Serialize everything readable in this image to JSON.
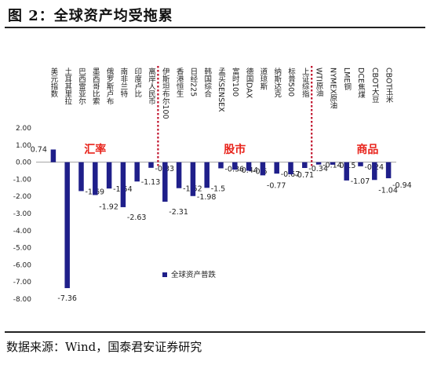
{
  "figure": {
    "title": "图 2：全球资产均受拖累",
    "source": "数据来源：Wind，国泰君安证券研究"
  },
  "chart_data": {
    "type": "bar",
    "categories": [
      "美元指数",
      "土耳其里拉",
      "巴西雷亚尔",
      "墨西哥比索",
      "俄罗斯卢布",
      "南非兰特",
      "印度卢比",
      "离岸人民币",
      "伊斯坦布尔100",
      "香港恒生",
      "日经225",
      "韩国综合",
      "孟买SENSEX",
      "富时100",
      "德国DAX",
      "道琼斯",
      "纳斯达克",
      "标普500",
      "上证综指",
      "WTI原油",
      "NYMEX原油",
      "LME铜",
      "DCE焦煤",
      "CBOT大豆",
      "CBOT玉米"
    ],
    "values": [
      0.74,
      -7.36,
      -1.69,
      -1.92,
      -1.54,
      -2.63,
      -1.13,
      -0.33,
      -2.31,
      -1.52,
      -1.98,
      -1.5,
      -0.36,
      -0.44,
      -0.5,
      -0.77,
      -0.67,
      -0.71,
      -0.34,
      -0.14,
      -0.15,
      -1.07,
      -0.24,
      -1.04,
      -0.94
    ],
    "value_labels": [
      "0.74",
      "-7.36",
      "-1.69",
      "-1.92",
      "-1.54",
      "-2.63",
      "-1.13",
      "-0.33",
      "-2.31",
      "-1.52",
      "-1.98",
      "-1.5",
      "-0.36",
      "-0.44",
      "-0.5",
      "-0.77",
      "-0.67",
      "-0.71",
      "-0.34",
      "-0.14",
      "-0.15",
      "-1.07",
      "-0.24",
      "-1.04",
      "-0.94"
    ],
    "groups": [
      {
        "label": "汇率",
        "start": 0,
        "end": 7
      },
      {
        "label": "股市",
        "start": 8,
        "end": 18
      },
      {
        "label": "商品",
        "start": 19,
        "end": 24
      }
    ],
    "ylim": [
      -8,
      2
    ],
    "yticks": [
      "2.00",
      "1.00",
      "0.00",
      "-1.00",
      "-2.00",
      "-3.00",
      "-4.00",
      "-5.00",
      "-6.00",
      "-7.00",
      "-8.00"
    ],
    "legend": {
      "label": "全球资产普跌",
      "placement": "bottom-center"
    },
    "bar_color": "#1f1f8a",
    "group_label_color": "#e8231b",
    "divider_color": "#c0102a",
    "grid": false
  }
}
